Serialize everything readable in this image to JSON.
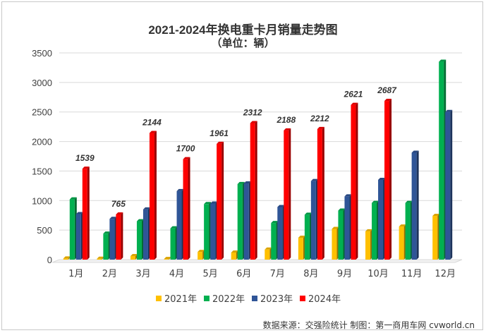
{
  "chart_data": {
    "type": "bar",
    "title": "2021-2024年换电重卡月销量走势图",
    "subtitle": "（单位：辆）",
    "categories": [
      "1月",
      "2月",
      "3月",
      "4月",
      "5月",
      "6月",
      "7月",
      "8月",
      "9月",
      "10月",
      "11月",
      "12月"
    ],
    "ylim": [
      0,
      3500
    ],
    "yticks": [
      0,
      500,
      1000,
      1500,
      2000,
      2500,
      3000,
      3500
    ],
    "grid": true,
    "legend_position": "bottom",
    "series": [
      {
        "name": "2021年",
        "color": "#FFC000",
        "values": [
          20,
          15,
          60,
          10,
          130,
          120,
          170,
          370,
          520,
          480,
          560,
          740
        ]
      },
      {
        "name": "2022年",
        "color": "#00B050",
        "values": [
          1020,
          440,
          650,
          530,
          940,
          1280,
          620,
          760,
          830,
          960,
          960,
          3350
        ]
      },
      {
        "name": "2023年",
        "color": "#2F5597",
        "values": [
          770,
          690,
          850,
          1160,
          950,
          1290,
          890,
          1330,
          1070,
          1350,
          1810,
          2500
        ]
      },
      {
        "name": "2024年",
        "color": "#FF0000",
        "values": [
          1539,
          765,
          2144,
          1700,
          1961,
          2312,
          2188,
          2212,
          2621,
          2687,
          null,
          null
        ]
      }
    ],
    "data_labels": {
      "series": "2024年",
      "values": [
        "1539",
        "765",
        "2144",
        "1700",
        "1961",
        "2312",
        "2188",
        "2212",
        "2621",
        "2687"
      ]
    },
    "source": "数据来源：交强险统计 制图：第一商用车网 cvworld.cn"
  }
}
